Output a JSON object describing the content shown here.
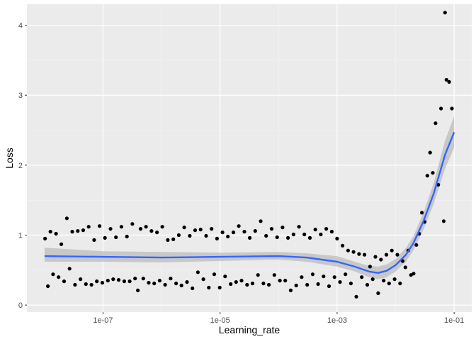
{
  "chart_data": {
    "type": "scatter",
    "title": "",
    "xlabel": "Learning_rate",
    "ylabel": "Loss",
    "x_scale": "log10",
    "xlim": [
      5e-09,
      0.2
    ],
    "ylim": [
      -0.1,
      4.3
    ],
    "x_ticks": [
      {
        "value": 1e-07,
        "label": "1e-07"
      },
      {
        "value": 1e-05,
        "label": "1e-05"
      },
      {
        "value": 0.001,
        "label": "1e-03"
      },
      {
        "value": 0.1,
        "label": "1e-01"
      }
    ],
    "y_ticks": [
      {
        "value": 0,
        "label": "0"
      },
      {
        "value": 1,
        "label": "1"
      },
      {
        "value": 2,
        "label": "2"
      },
      {
        "value": 3,
        "label": "3"
      },
      {
        "value": 4,
        "label": "4"
      }
    ],
    "grid": true,
    "background": "#ebebeb",
    "point_color": "#000000",
    "smooth_color": "#3366ff",
    "ribbon_color": "#bfbfbf",
    "points": [
      [
        1.02e-08,
        0.95
      ],
      [
        1.14e-08,
        0.27
      ],
      [
        1.26e-08,
        1.05
      ],
      [
        1.4e-08,
        0.44
      ],
      [
        1.57e-08,
        1.02
      ],
      [
        1.74e-08,
        0.4
      ],
      [
        1.94e-08,
        0.87
      ],
      [
        2.16e-08,
        0.34
      ],
      [
        2.41e-08,
        1.24
      ],
      [
        2.68e-08,
        0.52
      ],
      [
        2.98e-08,
        1.05
      ],
      [
        3.32e-08,
        0.29
      ],
      [
        3.7e-08,
        1.06
      ],
      [
        4.12e-08,
        0.37
      ],
      [
        4.58e-08,
        1.07
      ],
      [
        5.1e-08,
        0.3
      ],
      [
        5.68e-08,
        1.12
      ],
      [
        6.33e-08,
        0.29
      ],
      [
        7.04e-08,
        0.93
      ],
      [
        7.84e-08,
        0.34
      ],
      [
        8.73e-08,
        1.13
      ],
      [
        9.72e-08,
        0.32
      ],
      [
        1.08e-07,
        0.96
      ],
      [
        1.21e-07,
        0.35
      ],
      [
        1.34e-07,
        1.09
      ],
      [
        1.49e-07,
        0.37
      ],
      [
        1.66e-07,
        0.97
      ],
      [
        1.85e-07,
        0.36
      ],
      [
        2.06e-07,
        1.12
      ],
      [
        2.3e-07,
        0.34
      ],
      [
        2.56e-07,
        0.98
      ],
      [
        2.85e-07,
        0.34
      ],
      [
        3.17e-07,
        1.16
      ],
      [
        3.53e-07,
        0.38
      ],
      [
        3.93e-07,
        0.21
      ],
      [
        4.38e-07,
        1.09
      ],
      [
        4.87e-07,
        0.38
      ],
      [
        5.42e-07,
        1.12
      ],
      [
        6.04e-07,
        0.32
      ],
      [
        6.73e-07,
        1.06
      ],
      [
        7.49e-07,
        0.31
      ],
      [
        8.34e-07,
        1.04
      ],
      [
        9.28e-07,
        0.35
      ],
      [
        1.03e-06,
        1.12
      ],
      [
        1.15e-06,
        0.29
      ],
      [
        1.28e-06,
        0.93
      ],
      [
        1.43e-06,
        0.38
      ],
      [
        1.59e-06,
        0.94
      ],
      [
        1.77e-06,
        0.31
      ],
      [
        1.97e-06,
        1.0
      ],
      [
        2.19e-06,
        0.28
      ],
      [
        2.44e-06,
        1.11
      ],
      [
        2.72e-06,
        0.33
      ],
      [
        3.03e-06,
        0.99
      ],
      [
        3.37e-06,
        0.24
      ],
      [
        3.75e-06,
        1.07
      ],
      [
        4.18e-06,
        0.47
      ],
      [
        4.65e-06,
        1.08
      ],
      [
        5.18e-06,
        0.37
      ],
      [
        5.77e-06,
        0.99
      ],
      [
        6.42e-06,
        0.25
      ],
      [
        7.15e-06,
        1.09
      ],
      [
        7.96e-06,
        0.44
      ],
      [
        8.86e-06,
        0.95
      ],
      [
        9.87e-06,
        0.25
      ],
      [
        1.1e-05,
        1.04
      ],
      [
        1.22e-05,
        0.41
      ],
      [
        1.36e-05,
        0.98
      ],
      [
        1.52e-05,
        0.3
      ],
      [
        1.69e-05,
        1.04
      ],
      [
        1.88e-05,
        0.33
      ],
      [
        2.09e-05,
        1.13
      ],
      [
        2.33e-05,
        0.35
      ],
      [
        2.6e-05,
        1.05
      ],
      [
        2.89e-05,
        0.29
      ],
      [
        3.22e-05,
        0.96
      ],
      [
        3.58e-05,
        0.31
      ],
      [
        3.99e-05,
        1.06
      ],
      [
        4.44e-05,
        0.43
      ],
      [
        4.95e-05,
        1.2
      ],
      [
        5.51e-05,
        0.31
      ],
      [
        6.13e-05,
        0.99
      ],
      [
        6.83e-05,
        0.29
      ],
      [
        7.6e-05,
        1.09
      ],
      [
        8.47e-05,
        0.43
      ],
      [
        9.43e-05,
        0.97
      ],
      [
        0.000105,
        0.35
      ],
      [
        0.000117,
        1.11
      ],
      [
        0.00013,
        0.35
      ],
      [
        0.000145,
        0.96
      ],
      [
        0.000161,
        0.21
      ],
      [
        0.00018,
        1.01
      ],
      [
        0.0002,
        0.28
      ],
      [
        0.000223,
        1.12
      ],
      [
        0.000248,
        0.4
      ],
      [
        0.000276,
        1.01
      ],
      [
        0.000308,
        0.29
      ],
      [
        0.000343,
        0.96
      ],
      [
        0.000382,
        0.44
      ],
      [
        0.000425,
        1.08
      ],
      [
        0.000473,
        0.3
      ],
      [
        0.000527,
        1.01
      ],
      [
        0.000587,
        0.41
      ],
      [
        0.000653,
        1.09
      ],
      [
        0.000727,
        0.27
      ],
      [
        0.00081,
        1.05
      ],
      [
        0.000902,
        0.4
      ],
      [
        0.001,
        0.95
      ],
      [
        0.00112,
        0.33
      ],
      [
        0.00124,
        0.85
      ],
      [
        0.00139,
        0.44
      ],
      [
        0.00154,
        0.78
      ],
      [
        0.00172,
        0.31
      ],
      [
        0.00191,
        0.76
      ],
      [
        0.00213,
        0.12
      ],
      [
        0.00237,
        0.73
      ],
      [
        0.00264,
        0.4
      ],
      [
        0.00294,
        0.72
      ],
      [
        0.00328,
        0.29
      ],
      [
        0.00365,
        0.55
      ],
      [
        0.00406,
        0.37
      ],
      [
        0.00452,
        0.69
      ],
      [
        0.00504,
        0.17
      ],
      [
        0.00561,
        0.65
      ],
      [
        0.00624,
        0.35
      ],
      [
        0.00695,
        0.72
      ],
      [
        0.00774,
        0.31
      ],
      [
        0.00862,
        0.78
      ],
      [
        0.0096,
        0.37
      ],
      [
        0.0107,
        0.72
      ],
      [
        0.0119,
        0.31
      ],
      [
        0.0132,
        0.63
      ],
      [
        0.0147,
        0.54
      ],
      [
        0.0164,
        0.78
      ],
      [
        0.0183,
        0.43
      ],
      [
        0.0203,
        0.45
      ],
      [
        0.0226,
        0.86
      ],
      [
        0.0252,
        1.02
      ],
      [
        0.0281,
        1.32
      ],
      [
        0.0313,
        1.19
      ],
      [
        0.0348,
        1.85
      ],
      [
        0.0388,
        2.18
      ],
      [
        0.0432,
        1.89
      ],
      [
        0.0481,
        2.6
      ],
      [
        0.0535,
        1.72
      ],
      [
        0.0596,
        2.81
      ],
      [
        0.0663,
        1.2
      ],
      [
        0.0739,
        3.22
      ],
      [
        0.0822,
        3.19
      ],
      [
        0.0916,
        2.81
      ],
      [
        0.07,
        4.18
      ]
    ],
    "smooth": {
      "x": [
        1e-08,
        1e-07,
        1e-06,
        1e-05,
        0.0001,
        0.0003,
        0.001,
        0.002,
        0.0035,
        0.005,
        0.007,
        0.01,
        0.015,
        0.02,
        0.03,
        0.045,
        0.07,
        0.1
      ],
      "y": [
        0.7,
        0.69,
        0.68,
        0.69,
        0.7,
        0.68,
        0.62,
        0.55,
        0.48,
        0.46,
        0.49,
        0.57,
        0.72,
        0.88,
        1.2,
        1.6,
        2.15,
        2.47
      ],
      "lo": [
        0.62,
        0.62,
        0.61,
        0.63,
        0.65,
        0.62,
        0.55,
        0.48,
        0.4,
        0.37,
        0.4,
        0.48,
        0.62,
        0.78,
        1.08,
        1.45,
        1.95,
        2.25
      ],
      "hi": [
        0.82,
        0.77,
        0.76,
        0.75,
        0.76,
        0.74,
        0.7,
        0.62,
        0.56,
        0.55,
        0.58,
        0.66,
        0.82,
        0.98,
        1.32,
        1.75,
        2.35,
        2.7
      ]
    }
  }
}
